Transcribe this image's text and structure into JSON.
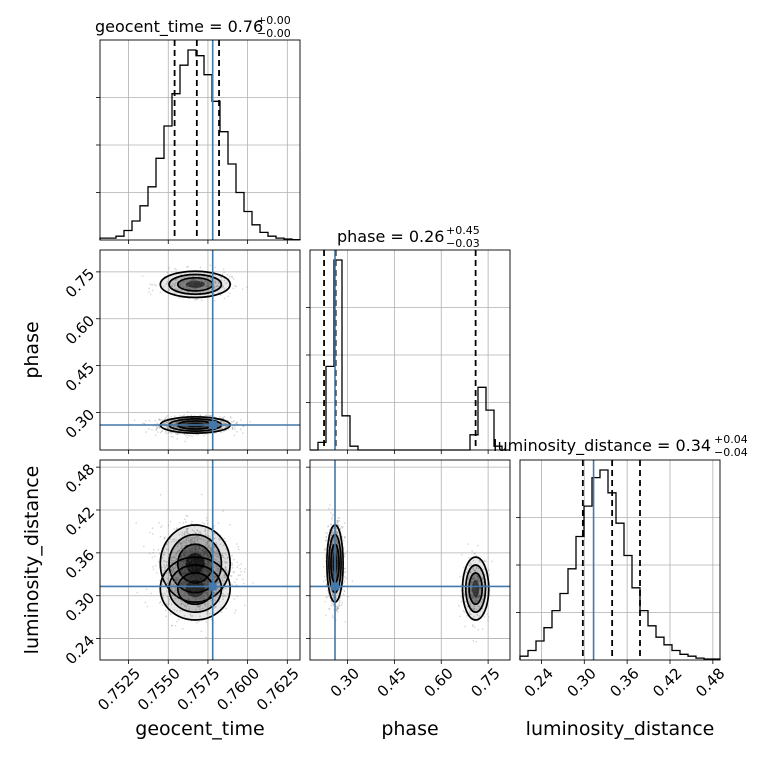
{
  "chart_data": {
    "type": "corner",
    "parameters": [
      "geocent_time",
      "phase",
      "luminosity_distance"
    ],
    "truths": {
      "geocent_time": 0.7578,
      "phase": 0.26,
      "luminosity_distance": 0.313
    },
    "quantiles": {
      "geocent_time": [
        0.7554,
        0.7568,
        0.7582
      ],
      "phase": [
        0.225,
        0.262,
        0.71
      ],
      "luminosity_distance": [
        0.298,
        0.339,
        0.378
      ]
    },
    "titles": {
      "geocent_time": {
        "text": "geocent_time = 0.76",
        "plus": "+0.00",
        "minus": "−0.00"
      },
      "phase": {
        "text": "phase = 0.26",
        "plus": "+0.45",
        "minus": "−0.03"
      },
      "luminosity_distance": {
        "text": "luminosity_distance = 0.34",
        "plus": "+0.04",
        "minus": "−0.04"
      }
    },
    "axis_labels": {
      "geocent_time": "geocent_time",
      "phase": "phase",
      "luminosity_distance": "luminosity_distance"
    },
    "ranges": {
      "geocent_time": [
        0.7507,
        0.7633
      ],
      "phase": [
        0.18,
        0.82
      ],
      "luminosity_distance": [
        0.21,
        0.49
      ]
    },
    "ticks": {
      "geocent_time": [
        "0.7525",
        "0.7550",
        "0.7575",
        "0.7600",
        "0.7625"
      ],
      "phase": [
        "0.30",
        "0.45",
        "0.60",
        "0.75"
      ],
      "luminosity_distance": [
        "0.24",
        "0.30",
        "0.36",
        "0.42",
        "0.48"
      ]
    },
    "histograms": {
      "geocent_time": {
        "edges": [
          0.7507,
          0.7633
        ],
        "counts": [
          1,
          1,
          2,
          5,
          10,
          18,
          28,
          43,
          60,
          77,
          92,
          100,
          97,
          87,
          73,
          57,
          40,
          25,
          15,
          8,
          4,
          2,
          1,
          0.5,
          0.2
        ]
      },
      "phase": {
        "edges": [
          0.18,
          0.82
        ],
        "counts": [
          0,
          4,
          44,
          100,
          18,
          2,
          0,
          0,
          0,
          0,
          0,
          0,
          0,
          0,
          0,
          0,
          0,
          0,
          0,
          0,
          8,
          33,
          21,
          2,
          0
        ]
      },
      "luminosity_distance": {
        "edges": [
          0.21,
          0.49
        ],
        "counts": [
          2,
          5,
          10,
          17,
          26,
          35,
          48,
          65,
          81,
          96,
          100,
          88,
          72,
          55,
          38,
          26,
          18,
          12,
          8,
          5,
          3,
          2,
          1,
          0.5,
          0.5
        ]
      }
    },
    "modes": [
      {
        "geocent_time": 0.7567,
        "phase": 0.26,
        "luminosity_distance": 0.345,
        "spread": [
          0.0011,
          0.013,
          0.027
        ],
        "weight": 0.78
      },
      {
        "geocent_time": 0.7567,
        "phase": 0.71,
        "luminosity_distance": 0.31,
        "spread": [
          0.0011,
          0.021,
          0.022
        ],
        "weight": 0.22
      }
    ],
    "grid": true,
    "truth_color": "#4477aa",
    "line_color": "#000000",
    "point_color": "#888888"
  }
}
